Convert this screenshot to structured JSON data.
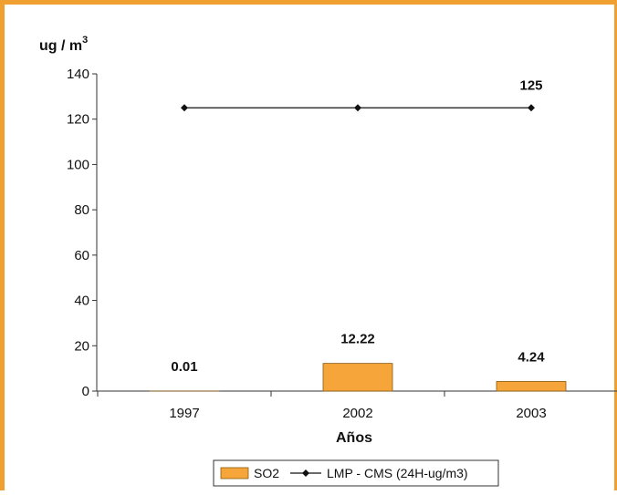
{
  "chart_data": {
    "type": "bar",
    "ylabel": "ug / m",
    "ylabel_superscript": "3",
    "xlabel": "Años",
    "categories": [
      "1997",
      "2002",
      "2003"
    ],
    "ylim": [
      0,
      140
    ],
    "yticks": [
      0,
      20,
      40,
      60,
      80,
      100,
      120,
      140
    ],
    "grid": false,
    "legend_position": "bottom",
    "series": [
      {
        "name": "SO2",
        "kind": "bar",
        "color": "#f5a53a",
        "values": [
          0.01,
          12.22,
          4.24
        ],
        "data_labels": [
          "0.01",
          "12.22",
          "4.24"
        ]
      },
      {
        "name": "LMP - CMS (24H-ug/m3)",
        "kind": "line",
        "marker": "diamond",
        "color": "#111111",
        "values": [
          125,
          125,
          125
        ],
        "data_labels": [
          "",
          "",
          "125"
        ]
      }
    ]
  }
}
